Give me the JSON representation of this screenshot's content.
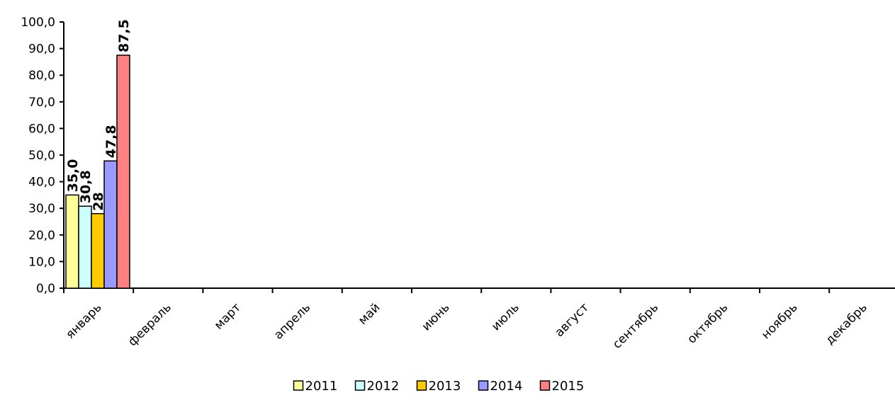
{
  "chart_data": {
    "type": "bar",
    "title": "",
    "xlabel": "",
    "ylabel": "",
    "categories": [
      "январь",
      "февраль",
      "март",
      "апрель",
      "май",
      "июнь",
      "июль",
      "август",
      "сентябрь",
      "октябрь",
      "ноябрь",
      "декабрь"
    ],
    "yticks": [
      "0,0",
      "10,0",
      "20,0",
      "30,0",
      "40,0",
      "50,0",
      "60,0",
      "70,0",
      "80,0",
      "90,0",
      "100,0"
    ],
    "ylim": [
      0,
      100
    ],
    "grid": false,
    "legend_position": "bottom",
    "series": [
      {
        "name": "2011",
        "color": "#ffff99",
        "values": [
          35.0,
          null,
          null,
          null,
          null,
          null,
          null,
          null,
          null,
          null,
          null,
          null
        ],
        "labels": [
          "35,0"
        ]
      },
      {
        "name": "2012",
        "color": "#ccffff",
        "values": [
          30.8,
          null,
          null,
          null,
          null,
          null,
          null,
          null,
          null,
          null,
          null,
          null
        ],
        "labels": [
          "30,8"
        ]
      },
      {
        "name": "2013",
        "color": "#ffcc00",
        "values": [
          28,
          null,
          null,
          null,
          null,
          null,
          null,
          null,
          null,
          null,
          null,
          null
        ],
        "labels": [
          "28"
        ]
      },
      {
        "name": "2014",
        "color": "#9999ff",
        "values": [
          47.8,
          null,
          null,
          null,
          null,
          null,
          null,
          null,
          null,
          null,
          null,
          null
        ],
        "labels": [
          "47,8"
        ]
      },
      {
        "name": "2015",
        "color": "#ff8080",
        "values": [
          87.5,
          null,
          null,
          null,
          null,
          null,
          null,
          null,
          null,
          null,
          null,
          null
        ],
        "labels": [
          "87,5"
        ]
      }
    ]
  }
}
